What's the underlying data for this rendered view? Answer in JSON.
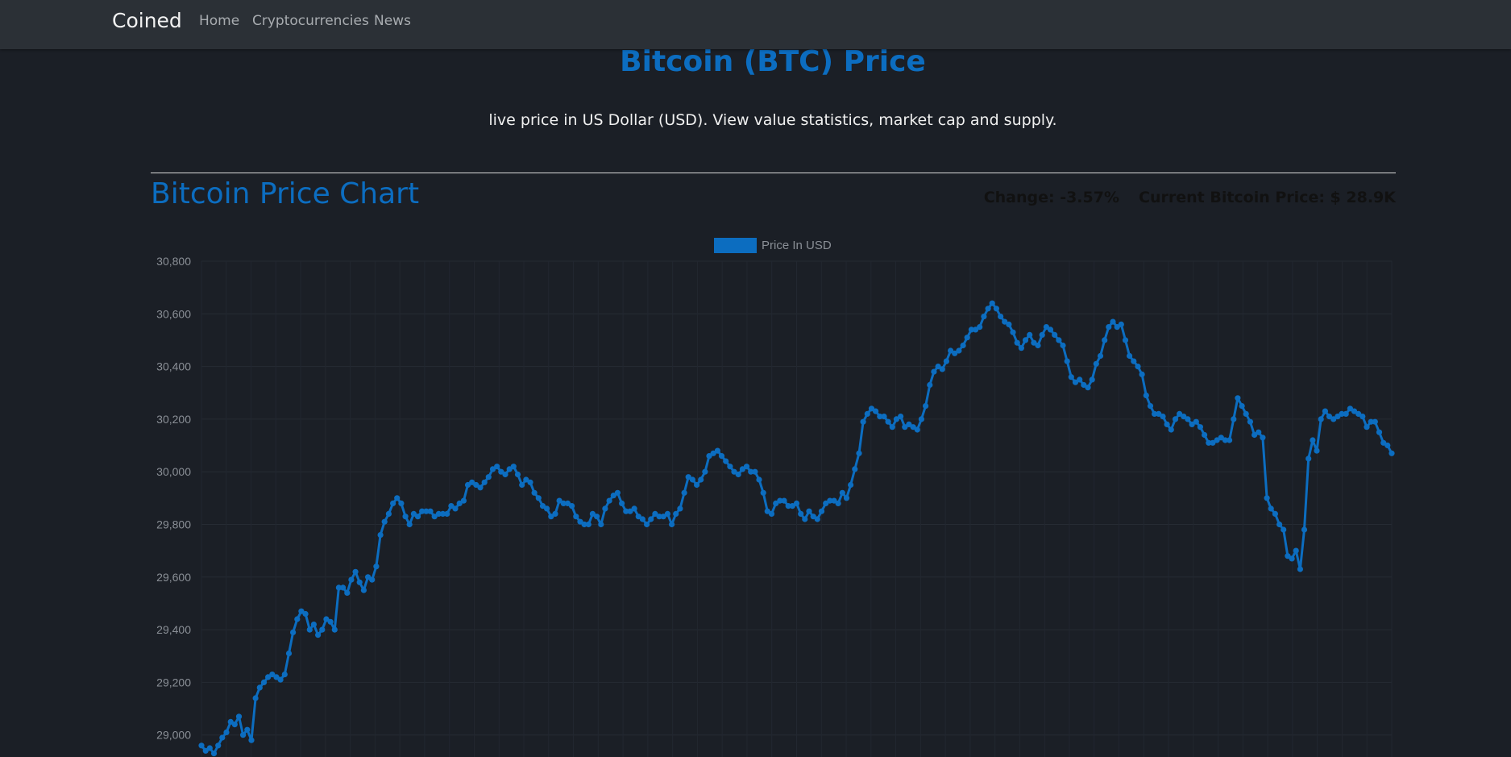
{
  "navbar": {
    "brand": "Coined",
    "links": [
      "Home",
      "Cryptocurrencies",
      "News"
    ]
  },
  "header": {
    "title": "Bitcoin (BTC) Price",
    "subtitle": "live price in US Dollar (USD). View value statistics, market cap and supply."
  },
  "chart_section": {
    "heading": "Bitcoin Price Chart",
    "change_label": "Change: -3.57%",
    "current_price_label": "Current Bitcoin Price: $ 28.9K"
  },
  "colors": {
    "accent": "#0c6dc0",
    "background": "#1b1f26",
    "navbar": "#2b3036"
  },
  "chart_data": {
    "type": "line",
    "legend": {
      "label": "Price In USD",
      "position": "top"
    },
    "yticks": [
      "30,800",
      "30,600",
      "30,400",
      "30,200",
      "30,000",
      "29,800",
      "29,600",
      "29,400",
      "29,200",
      "29,000"
    ],
    "ylim": [
      28960,
      30800
    ],
    "grid": true,
    "series": [
      {
        "name": "Price In USD",
        "values": [
          28960,
          28940,
          28950,
          28930,
          28960,
          28990,
          29010,
          29050,
          29040,
          29070,
          29000,
          29020,
          28980,
          29140,
          29180,
          29200,
          29220,
          29230,
          29220,
          29210,
          29230,
          29310,
          29390,
          29440,
          29470,
          29460,
          29400,
          29420,
          29380,
          29400,
          29440,
          29430,
          29400,
          29560,
          29560,
          29540,
          29590,
          29620,
          29580,
          29550,
          29600,
          29590,
          29640,
          29760,
          29810,
          29840,
          29880,
          29900,
          29880,
          29830,
          29800,
          29840,
          29830,
          29850,
          29850,
          29850,
          29830,
          29840,
          29840,
          29840,
          29870,
          29860,
          29880,
          29890,
          29950,
          29960,
          29950,
          29940,
          29960,
          29980,
          30010,
          30020,
          30000,
          29990,
          30010,
          30020,
          29990,
          29950,
          29970,
          29960,
          29920,
          29900,
          29870,
          29860,
          29830,
          29840,
          29890,
          29880,
          29880,
          29870,
          29830,
          29810,
          29800,
          29800,
          29840,
          29830,
          29800,
          29860,
          29890,
          29910,
          29920,
          29880,
          29850,
          29850,
          29860,
          29830,
          29820,
          29800,
          29820,
          29840,
          29830,
          29830,
          29840,
          29800,
          29840,
          29860,
          29920,
          29980,
          29970,
          29950,
          29970,
          30000,
          30060,
          30070,
          30080,
          30060,
          30040,
          30020,
          30000,
          29990,
          30010,
          30020,
          30000,
          30000,
          29970,
          29920,
          29850,
          29840,
          29880,
          29890,
          29890,
          29870,
          29870,
          29880,
          29840,
          29820,
          29850,
          29830,
          29820,
          29850,
          29880,
          29890,
          29890,
          29880,
          29920,
          29900,
          29950,
          30010,
          30070,
          30190,
          30220,
          30240,
          30230,
          30210,
          30210,
          30190,
          30170,
          30200,
          30210,
          30170,
          30180,
          30170,
          30160,
          30200,
          30250,
          30330,
          30380,
          30400,
          30390,
          30420,
          30460,
          30450,
          30460,
          30480,
          30510,
          30540,
          30540,
          30550,
          30590,
          30620,
          30640,
          30620,
          30590,
          30570,
          30560,
          30530,
          30490,
          30470,
          30500,
          30520,
          30490,
          30480,
          30520,
          30550,
          30540,
          30520,
          30500,
          30480,
          30420,
          30360,
          30340,
          30350,
          30330,
          30320,
          30350,
          30410,
          30440,
          30500,
          30550,
          30570,
          30550,
          30560,
          30500,
          30440,
          30420,
          30400,
          30370,
          30290,
          30250,
          30220,
          30220,
          30210,
          30180,
          30160,
          30200,
          30220,
          30210,
          30200,
          30180,
          30190,
          30170,
          30140,
          30110,
          30110,
          30120,
          30130,
          30120,
          30120,
          30200,
          30280,
          30250,
          30220,
          30190,
          30140,
          30150,
          30130,
          29900,
          29860,
          29840,
          29800,
          29780,
          29680,
          29670,
          29700,
          29630,
          29780,
          30050,
          30120,
          30080,
          30200,
          30230,
          30210,
          30200,
          30210,
          30220,
          30220,
          30240,
          30230,
          30220,
          30210,
          30170,
          30190,
          30190,
          30150,
          30110,
          30100,
          30070
        ]
      }
    ]
  }
}
